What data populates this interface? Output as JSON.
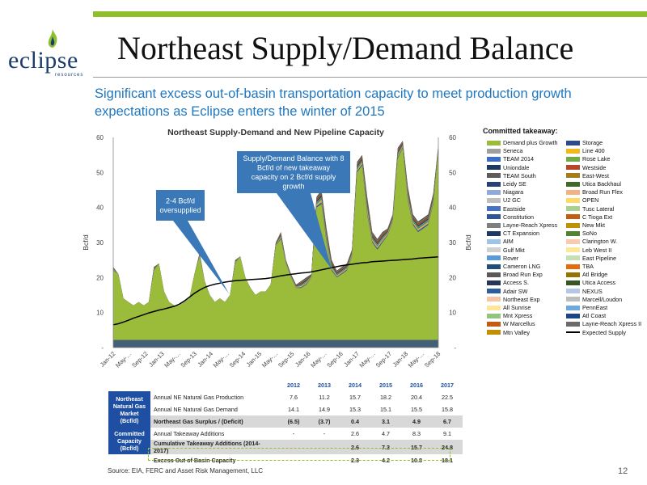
{
  "slide": {
    "title": "Northeast Supply/Demand Balance",
    "subtitle": "Significant excess out-of-basin transportation capacity to meet production growth expectations as Eclipse enters the winter of 2015",
    "logo_word": "eclipse",
    "logo_sub": "resources",
    "source": "Source: EIA, FERC and Asset Risk Management, LLC",
    "page_number": "12",
    "colors": {
      "accent": "#8fbf2a",
      "brand_blue": "#1f4fa3",
      "subtitle_blue": "#1f77c0",
      "callout": "#3a78b8"
    }
  },
  "chart_data": {
    "type": "area",
    "title": "Northeast Supply-Demand and New Pipeline Capacity",
    "ylabel": "Bcf/d",
    "ylabel_right": "Bcf/d",
    "ylim": [
      0,
      60
    ],
    "y_ticks": [
      "-",
      "10",
      "20",
      "30",
      "40",
      "50",
      "60"
    ],
    "x_ticks": [
      "Jan-12",
      "May-…",
      "Sep-12",
      "Jan-13",
      "May-…",
      "Sep-13",
      "Jan-14",
      "May-…",
      "Sep-14",
      "Jan-15",
      "May-…",
      "Sep-15",
      "Jan-16",
      "May-…",
      "Sep-16",
      "Jan-17",
      "May-…",
      "Sep-17",
      "Jan-18",
      "May-…",
      "Sep-18"
    ],
    "annotations": [
      {
        "text": "2-4 Bcf/d oversupplied"
      },
      {
        "text": "Supply/Demand Balance with 8 Bcf/d of new takeaway capacity on 2 Bcf/d supply growth"
      }
    ],
    "demand_plus_growth": [
      22,
      21,
      14,
      13,
      12,
      13,
      12,
      13,
      22,
      24,
      16,
      13,
      12,
      12,
      13,
      14,
      21,
      26,
      19,
      15,
      13,
      14,
      13,
      15,
      24,
      26,
      20,
      17,
      15,
      16,
      16,
      18,
      29,
      31,
      24,
      20,
      17,
      17,
      18,
      20,
      40,
      41,
      30,
      22,
      20,
      21,
      22,
      26,
      50,
      52,
      38,
      30,
      28,
      30,
      32,
      36,
      54,
      57,
      42,
      35,
      33,
      34,
      35,
      41,
      56
    ],
    "takeaway_stack_top": [
      23,
      21,
      14,
      13,
      12,
      13,
      12,
      13,
      23,
      24,
      16,
      13,
      12,
      12,
      13,
      14,
      21,
      27,
      19,
      15,
      13,
      14,
      13,
      15,
      25,
      26,
      20,
      17,
      15,
      16,
      16,
      18,
      30,
      33,
      25,
      21,
      18,
      19,
      20,
      21,
      43,
      45,
      34,
      25,
      22,
      23,
      24,
      28,
      53,
      55,
      43,
      33,
      31,
      33,
      34,
      38,
      57,
      59,
      46,
      38,
      36,
      37,
      38,
      44,
      58
    ],
    "expected_supply": [
      6.5,
      6.8,
      7.3,
      7.8,
      8.4,
      8.9,
      9.4,
      9.9,
      10.3,
      10.7,
      11.0,
      11.4,
      11.8,
      12.4,
      13.3,
      14.4,
      15.5,
      16.4,
      17.2,
      17.7,
      18.1,
      18.4,
      18.7,
      18.9,
      19.1,
      19.2,
      19.3,
      19.4,
      19.5,
      19.6,
      19.7,
      19.9,
      20.2,
      20.5,
      20.7,
      20.9,
      21.1,
      21.3,
      21.4,
      21.6,
      21.9,
      22.2,
      22.5,
      22.8,
      23.1,
      23.4,
      23.6,
      23.8,
      24.0,
      24.2,
      24.3,
      24.5,
      24.6,
      24.7,
      24.8,
      24.9,
      25.0,
      25.1,
      25.2,
      25.3,
      25.5,
      25.6,
      25.7,
      25.8,
      25.9
    ],
    "series": [
      {
        "name": "Demand plus Growth",
        "color": "#9bbb3b"
      },
      {
        "name": "Storage",
        "color": "#2e4a88"
      },
      {
        "name": "Seneca",
        "color": "#9f9f9f"
      },
      {
        "name": "Line 400",
        "color": "#f2b91c"
      },
      {
        "name": "TEAM 2014",
        "color": "#3d6fc4"
      },
      {
        "name": "Rose Lake",
        "color": "#71ad47"
      },
      {
        "name": "Uniondale",
        "color": "#1f3967"
      },
      {
        "name": "Westside",
        "color": "#b7472a"
      },
      {
        "name": "TEAM South",
        "color": "#5c5c5c"
      },
      {
        "name": "East-West",
        "color": "#a67c1a"
      },
      {
        "name": "Leidy SE",
        "color": "#25407a"
      },
      {
        "name": "Utica Backhaul",
        "color": "#3f6b26"
      },
      {
        "name": "Niagara",
        "color": "#8ea9db"
      },
      {
        "name": "Broad Run Flex",
        "color": "#f4b183"
      },
      {
        "name": "U2 GC",
        "color": "#bfbfbf"
      },
      {
        "name": "OPEN",
        "color": "#ffd966"
      },
      {
        "name": "Eastside",
        "color": "#4472c4"
      },
      {
        "name": "Tusc Lateral",
        "color": "#a9d18e"
      },
      {
        "name": "Constitution",
        "color": "#2f5597"
      },
      {
        "name": "C Tioga Ext",
        "color": "#c55a11"
      },
      {
        "name": "Layne-Reach Xpress",
        "color": "#7f7f7f"
      },
      {
        "name": "New Mkt",
        "color": "#bf9000"
      },
      {
        "name": "CT Expansion",
        "color": "#203864"
      },
      {
        "name": "SoNo",
        "color": "#548235"
      },
      {
        "name": "AIM",
        "color": "#9dc3e6"
      },
      {
        "name": "Clarington W.",
        "color": "#f8cbad"
      },
      {
        "name": "Gulf Mkt",
        "color": "#d0d0d0"
      },
      {
        "name": "Leb West II",
        "color": "#ffe699"
      },
      {
        "name": "Rover",
        "color": "#5b9bd5"
      },
      {
        "name": "East Pipeline",
        "color": "#c5e0b4"
      },
      {
        "name": "Cameron LNG",
        "color": "#1f4e79"
      },
      {
        "name": "TBA",
        "color": "#e46c0a"
      },
      {
        "name": "Broad Run Exp",
        "color": "#595959"
      },
      {
        "name": "Atl Bridge",
        "color": "#997300"
      },
      {
        "name": "Access S.",
        "color": "#26365a"
      },
      {
        "name": "Utica Access",
        "color": "#375623"
      },
      {
        "name": "Adair SW",
        "color": "#2c5e9e"
      },
      {
        "name": "NEXUS",
        "color": "#b4c7e7"
      },
      {
        "name": "Northeast Exp",
        "color": "#f7c6a6"
      },
      {
        "name": "Marcell/Loudon",
        "color": "#bdbdbd"
      },
      {
        "name": "All Sunrise",
        "color": "#ffe699"
      },
      {
        "name": "PennEast",
        "color": "#6fa8dc"
      },
      {
        "name": "Mnt Xpress",
        "color": "#93c47d"
      },
      {
        "name": "Atl Coast",
        "color": "#1c4587"
      },
      {
        "name": "W Marcellus",
        "color": "#c55a11"
      },
      {
        "name": "Layne-Reach Xpress II",
        "color": "#6b6b6b"
      },
      {
        "name": "Mtn Valley",
        "color": "#bf9000"
      },
      {
        "name": "Expected Supply",
        "color": "#000000"
      }
    ]
  },
  "legend_title": "Committed takeaway:",
  "table": {
    "years": [
      "2012",
      "2013",
      "2014",
      "2015",
      "2016",
      "2017"
    ],
    "group1_label": "Northeast Natural Gas Market (Bcf/d)",
    "group2_label": "Committed Capacity (Bcf/d)",
    "rows": [
      {
        "label": "Annual NE Natural Gas Production",
        "values": [
          "7.6",
          "11.2",
          "15.7",
          "18.2",
          "20.4",
          "22.5"
        ]
      },
      {
        "label": "Annual NE Natural Gas Demand",
        "values": [
          "14.1",
          "14.9",
          "15.3",
          "15.1",
          "15.5",
          "15.8"
        ]
      },
      {
        "label": "Northeast Gas Surplus / (Deficit)",
        "values": [
          "(6.5)",
          "(3.7)",
          "0.4",
          "3.1",
          "4.9",
          "6.7"
        ]
      },
      {
        "label": "Annual Takeaway Additions",
        "values": [
          "-",
          "-",
          "2.6",
          "4.7",
          "8.3",
          "9.1"
        ]
      },
      {
        "label": "Cumulative Takeaway Additions (2014-2017)",
        "values": [
          "",
          "",
          "2.6",
          "7.3",
          "15.7",
          "24.8"
        ]
      },
      {
        "label": "Excess Out of Basin Capacity",
        "values": [
          "",
          "",
          "2.3",
          "4.2",
          "10.8",
          "18.1"
        ]
      }
    ]
  }
}
